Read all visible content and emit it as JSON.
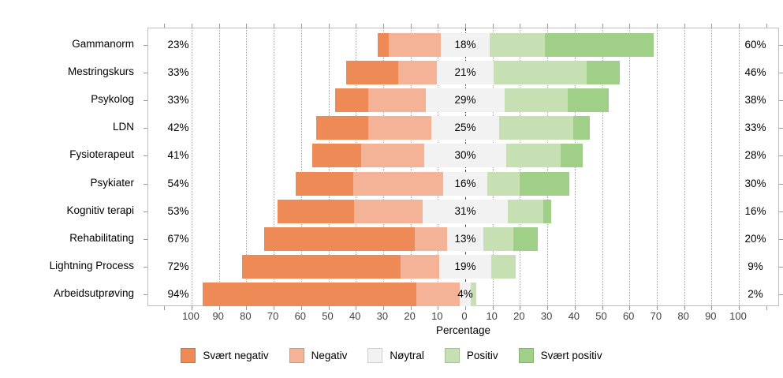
{
  "chart_data": {
    "type": "diverging_stacked_bar",
    "title": "",
    "xlabel": "Percentage",
    "x_axis": {
      "tick_values": [
        -100,
        -90,
        -80,
        -70,
        -60,
        -50,
        -40,
        -30,
        -20,
        -10,
        0,
        10,
        20,
        30,
        40,
        50,
        60,
        70,
        80,
        90,
        100
      ],
      "tick_labels": [
        "100",
        "90",
        "80",
        "70",
        "60",
        "50",
        "40",
        "30",
        "20",
        "10",
        "0",
        "10",
        "20",
        "30",
        "40",
        "50",
        "60",
        "70",
        "80",
        "90",
        "100"
      ],
      "range": [
        -115.5,
        115.5
      ],
      "grid": "dotted vertical every 10"
    },
    "categories": [
      "Gammanorm",
      "Mestringskurs",
      "Psykolog",
      "LDN",
      "Fysioterapeut",
      "Psykiater",
      "Kognitiv terapi",
      "Rehabilitating",
      "Lightning Process",
      "Arbeidsutprøving"
    ],
    "series": [
      {
        "name": "Svært negativ",
        "color": "#EE8A56",
        "values": [
          4,
          19,
          12,
          19,
          18,
          21,
          28,
          55,
          58,
          78
        ]
      },
      {
        "name": "Negativ",
        "color": "#F4B296",
        "values": [
          19,
          14,
          21,
          23,
          23,
          33,
          25,
          12,
          14,
          16
        ]
      },
      {
        "name": "Nøytral",
        "color": "#F2F2F2",
        "values": [
          18,
          21,
          29,
          25,
          30,
          16,
          31,
          13,
          19,
          4
        ]
      },
      {
        "name": "Positiv",
        "color": "#C7E0B3",
        "values": [
          20,
          34,
          23,
          27,
          20,
          12,
          13,
          11,
          9,
          2
        ]
      },
      {
        "name": "Svært positiv",
        "color": "#A0D087",
        "values": [
          40,
          12,
          15,
          6,
          8,
          18,
          3,
          9,
          0,
          0
        ]
      }
    ],
    "value_labels": {
      "left": [
        "23%",
        "33%",
        "33%",
        "42%",
        "41%",
        "54%",
        "53%",
        "67%",
        "72%",
        "94%"
      ],
      "mid": [
        "18%",
        "21%",
        "29%",
        "25%",
        "30%",
        "16%",
        "31%",
        "13%",
        "19%",
        "4%"
      ],
      "right": [
        "60%",
        "46%",
        "38%",
        "33%",
        "28%",
        "30%",
        "16%",
        "20%",
        "9%",
        "2%"
      ]
    },
    "legend_position": "bottom-center",
    "colors": {
      "frame": "#bdbdbd",
      "grid": "#a9a9a9",
      "zero_line": "#3a3a3a",
      "axis_text": "#404040"
    }
  }
}
